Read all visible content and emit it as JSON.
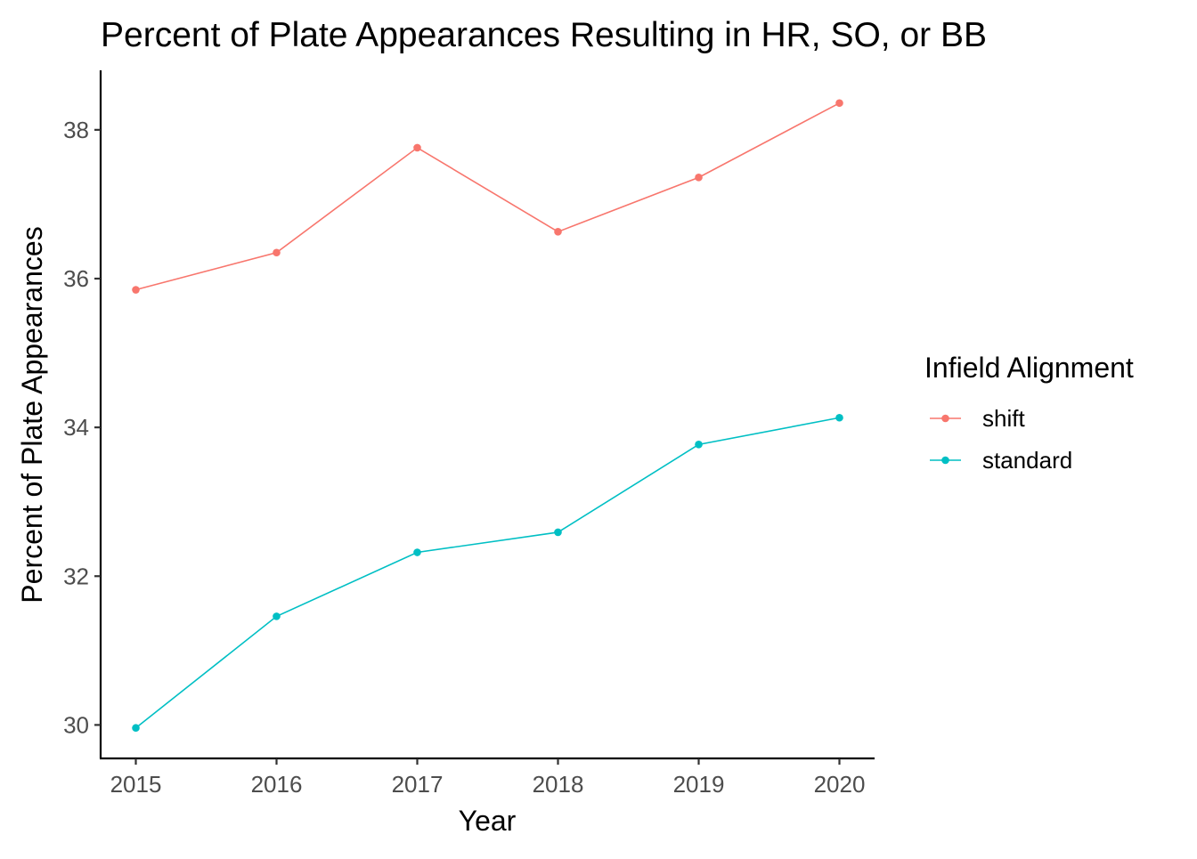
{
  "chart_data": {
    "type": "line",
    "title": "Percent of Plate Appearances Resulting in HR, SO, or BB",
    "xlabel": "Year",
    "ylabel": "Percent of Plate Appearances",
    "x": [
      2015,
      2016,
      2017,
      2018,
      2019,
      2020
    ],
    "x_tick_labels": [
      "2015",
      "2016",
      "2017",
      "2018",
      "2019",
      "2020"
    ],
    "y_ticks": [
      30,
      32,
      34,
      36,
      38
    ],
    "y_tick_labels": [
      "30",
      "32",
      "34",
      "36",
      "38"
    ],
    "xlim": [
      2014.75,
      2020.25
    ],
    "ylim": [
      29.55,
      38.8
    ],
    "grid": false,
    "legend": {
      "title": "Infield Alignment",
      "placement": "right"
    },
    "series": [
      {
        "name": "shift",
        "color": "#F8766D",
        "values": [
          35.85,
          36.35,
          37.76,
          36.63,
          37.36,
          38.36
        ]
      },
      {
        "name": "standard",
        "color": "#00BFC4",
        "values": [
          29.96,
          31.46,
          32.32,
          32.59,
          33.77,
          34.13
        ]
      }
    ]
  }
}
